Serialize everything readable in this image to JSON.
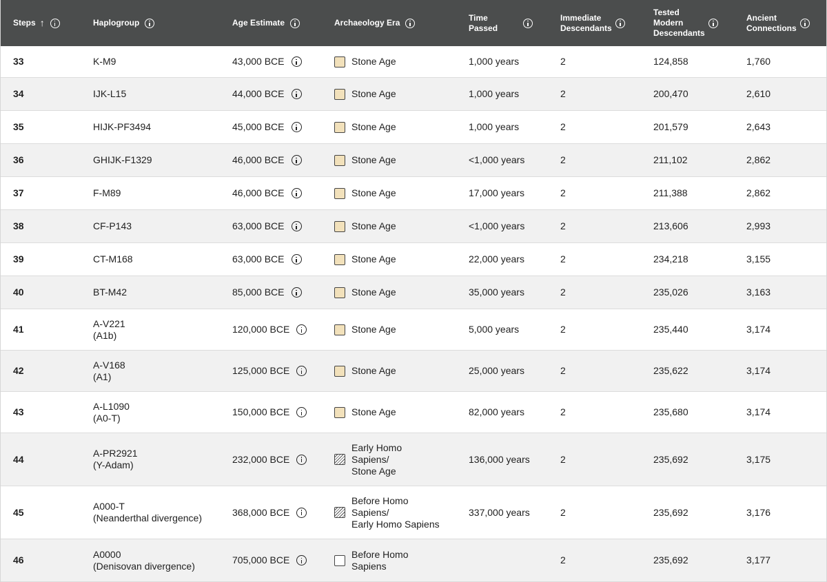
{
  "columns": [
    {
      "key": "steps",
      "label": "Steps",
      "sort": "↑"
    },
    {
      "key": "haplogroup",
      "label": "Haplogroup"
    },
    {
      "key": "age",
      "label": "Age Estimate"
    },
    {
      "key": "era",
      "label": "Archaeology Era"
    },
    {
      "key": "time",
      "label": "Time\nPassed"
    },
    {
      "key": "immediate",
      "label": "Immediate\nDescendants"
    },
    {
      "key": "tested",
      "label": "Tested\nModern\nDescendants"
    },
    {
      "key": "ancient",
      "label": "Ancient\nConnections"
    }
  ],
  "swatch_colors": {
    "stone": "#f2e1bb",
    "hatched": "#555555",
    "empty": "#ffffff"
  },
  "rows": [
    {
      "step": "33",
      "haplogroup": "K-M9",
      "age": "43,000 BCE",
      "era": "Stone Age",
      "era_swatch": "stone",
      "time": "1,000 years",
      "immediate": "2",
      "tested": "124,858",
      "ancient": "1,760"
    },
    {
      "step": "34",
      "haplogroup": "IJK-L15",
      "age": "44,000 BCE",
      "era": "Stone Age",
      "era_swatch": "stone",
      "time": "1,000 years",
      "immediate": "2",
      "tested": "200,470",
      "ancient": "2,610"
    },
    {
      "step": "35",
      "haplogroup": "HIJK-PF3494",
      "age": "45,000 BCE",
      "era": "Stone Age",
      "era_swatch": "stone",
      "time": "1,000 years",
      "immediate": "2",
      "tested": "201,579",
      "ancient": "2,643"
    },
    {
      "step": "36",
      "haplogroup": "GHIJK-F1329",
      "age": "46,000 BCE",
      "era": "Stone Age",
      "era_swatch": "stone",
      "time": "<1,000 years",
      "immediate": "2",
      "tested": "211,102",
      "ancient": "2,862"
    },
    {
      "step": "37",
      "haplogroup": "F-M89",
      "age": "46,000 BCE",
      "era": "Stone Age",
      "era_swatch": "stone",
      "time": "17,000 years",
      "immediate": "2",
      "tested": "211,388",
      "ancient": "2,862"
    },
    {
      "step": "38",
      "haplogroup": "CF-P143",
      "age": "63,000 BCE",
      "era": "Stone Age",
      "era_swatch": "stone",
      "time": "<1,000 years",
      "immediate": "2",
      "tested": "213,606",
      "ancient": "2,993"
    },
    {
      "step": "39",
      "haplogroup": "CT-M168",
      "age": "63,000 BCE",
      "era": "Stone Age",
      "era_swatch": "stone",
      "time": "22,000 years",
      "immediate": "2",
      "tested": "234,218",
      "ancient": "3,155"
    },
    {
      "step": "40",
      "haplogroup": "BT-M42",
      "age": "85,000 BCE",
      "era": "Stone Age",
      "era_swatch": "stone",
      "time": "35,000 years",
      "immediate": "2",
      "tested": "235,026",
      "ancient": "3,163"
    },
    {
      "step": "41",
      "haplogroup": "A-V221\n(A1b)",
      "age": "120,000 BCE",
      "era": "Stone Age",
      "era_swatch": "stone",
      "time": "5,000 years",
      "immediate": "2",
      "tested": "235,440",
      "ancient": "3,174"
    },
    {
      "step": "42",
      "haplogroup": "A-V168\n(A1)",
      "age": "125,000 BCE",
      "era": "Stone Age",
      "era_swatch": "stone",
      "time": "25,000 years",
      "immediate": "2",
      "tested": "235,622",
      "ancient": "3,174"
    },
    {
      "step": "43",
      "haplogroup": "A-L1090\n(A0-T)",
      "age": "150,000 BCE",
      "era": "Stone Age",
      "era_swatch": "stone",
      "time": "82,000 years",
      "immediate": "2",
      "tested": "235,680",
      "ancient": "3,174"
    },
    {
      "step": "44",
      "haplogroup": "A-PR2921\n(Y-Adam)",
      "age": "232,000 BCE",
      "era": "Early Homo\nSapiens/\nStone Age",
      "era_swatch": "hatched",
      "time": "136,000 years",
      "immediate": "2",
      "tested": "235,692",
      "ancient": "3,175"
    },
    {
      "step": "45",
      "haplogroup": "A000-T\n(Neanderthal divergence)",
      "age": "368,000 BCE",
      "era": "Before Homo\nSapiens/\nEarly Homo Sapiens",
      "era_swatch": "hatched",
      "time": "337,000 years",
      "immediate": "2",
      "tested": "235,692",
      "ancient": "3,176"
    },
    {
      "step": "46",
      "haplogroup": "A0000\n(Denisovan divergence)",
      "age": "705,000 BCE",
      "era": "Before Homo\nSapiens",
      "era_swatch": "empty",
      "time": "",
      "immediate": "2",
      "tested": "235,692",
      "ancient": "3,177"
    }
  ]
}
